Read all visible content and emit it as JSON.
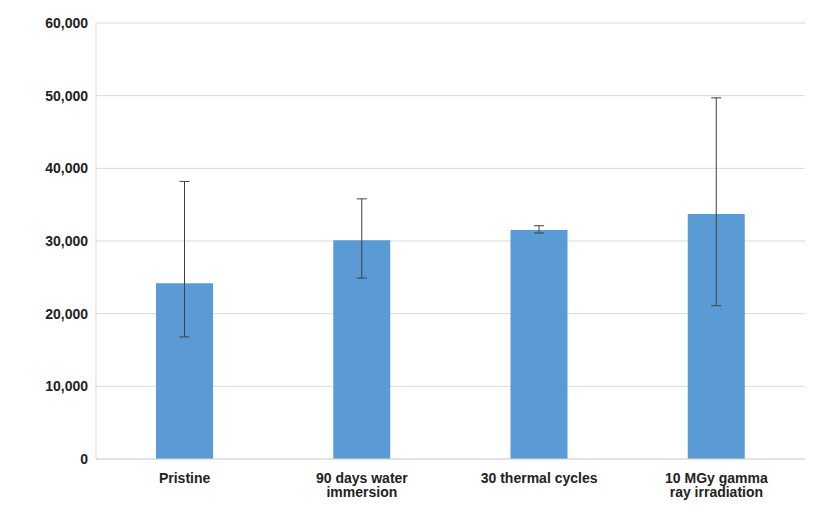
{
  "chart_data": {
    "type": "bar",
    "categories": [
      "Pristine",
      "90 days water immersion",
      "30 thermal cycles",
      "10 MGy gamma ray irradiation"
    ],
    "values": [
      24200,
      30100,
      31500,
      33700
    ],
    "error_minus": [
      7400,
      5200,
      400,
      12600
    ],
    "error_plus": [
      14000,
      5700,
      600,
      16000
    ],
    "color": "#5b9bd5",
    "ylim": [
      0,
      60000
    ],
    "yticks": [
      0,
      {
        "value": 10000,
        "label": "10,000"
      },
      {
        "value": 20000,
        "label": "20,000"
      },
      {
        "value": 30000,
        "label": "30,000"
      },
      {
        "value": 40000,
        "label": "40,000"
      },
      {
        "value": 50000,
        "label": "50,000"
      },
      {
        "value": 60000,
        "label": "60,000"
      }
    ],
    "grid": true
  }
}
